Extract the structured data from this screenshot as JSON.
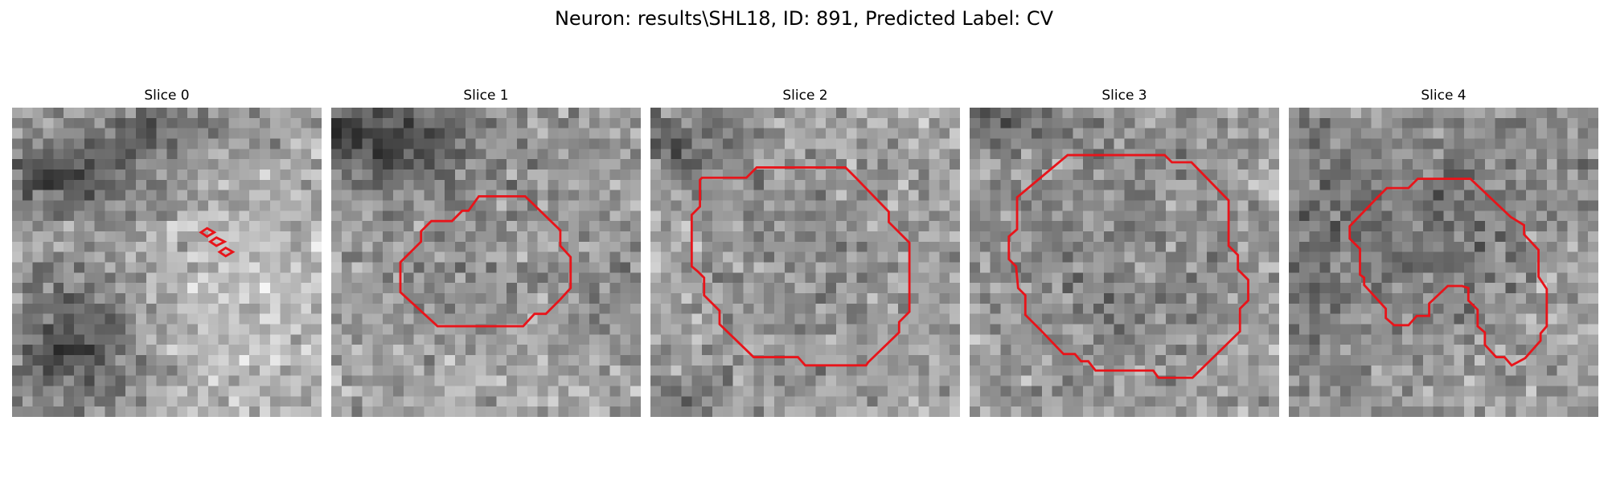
{
  "figure": {
    "title": "Neuron: results\\SHL18, ID: 891, Predicted Label: CV"
  },
  "panels": [
    {
      "title": "Slice 0"
    },
    {
      "title": "Slice 1"
    },
    {
      "title": "Slice 2"
    },
    {
      "title": "Slice 3"
    },
    {
      "title": "Slice 4"
    }
  ],
  "colors": {
    "contour": "#e8141a",
    "background": "#ffffff"
  }
}
